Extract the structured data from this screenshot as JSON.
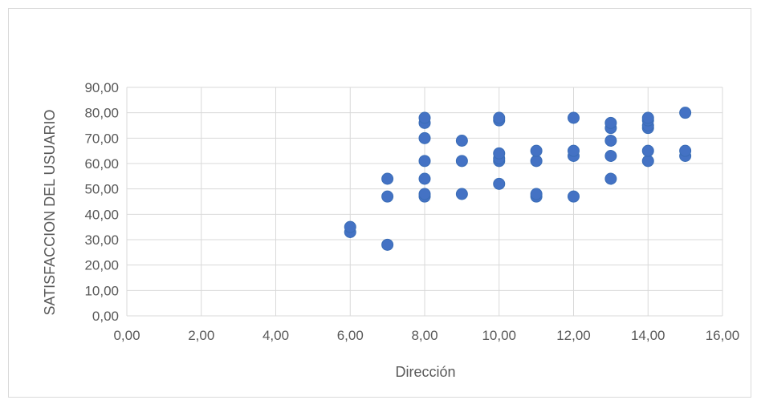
{
  "chart_data": {
    "type": "scatter",
    "title": "",
    "xlabel": "Dirección",
    "ylabel": "SATISFACCION DEL USUARIO",
    "xlim": [
      0,
      16
    ],
    "ylim": [
      0,
      90
    ],
    "x_ticks": [
      "0,00",
      "2,00",
      "4,00",
      "6,00",
      "8,00",
      "10,00",
      "12,00",
      "14,00",
      "16,00"
    ],
    "y_ticks": [
      "0,00",
      "10,00",
      "20,00",
      "30,00",
      "40,00",
      "50,00",
      "60,00",
      "70,00",
      "80,00",
      "90,00"
    ],
    "grid": true,
    "legend": "none",
    "marker_color": "#4472c4",
    "series": [
      {
        "points": [
          [
            6,
            33
          ],
          [
            6,
            35
          ],
          [
            7,
            28
          ],
          [
            7,
            47
          ],
          [
            7,
            54
          ],
          [
            8,
            47
          ],
          [
            8,
            48
          ],
          [
            8,
            54
          ],
          [
            8,
            61
          ],
          [
            8,
            70
          ],
          [
            8,
            76
          ],
          [
            8,
            78
          ],
          [
            9,
            48
          ],
          [
            9,
            61
          ],
          [
            9,
            69
          ],
          [
            10,
            52
          ],
          [
            10,
            61
          ],
          [
            10,
            62
          ],
          [
            10,
            64
          ],
          [
            10,
            77
          ],
          [
            10,
            78
          ],
          [
            11,
            47
          ],
          [
            11,
            48
          ],
          [
            11,
            61
          ],
          [
            11,
            65
          ],
          [
            12,
            47
          ],
          [
            12,
            63
          ],
          [
            12,
            65
          ],
          [
            12,
            78
          ],
          [
            13,
            54
          ],
          [
            13,
            63
          ],
          [
            13,
            69
          ],
          [
            13,
            74
          ],
          [
            13,
            76
          ],
          [
            14,
            61
          ],
          [
            14,
            65
          ],
          [
            14,
            74
          ],
          [
            14,
            75
          ],
          [
            14,
            77
          ],
          [
            14,
            78
          ],
          [
            15,
            63
          ],
          [
            15,
            65
          ],
          [
            15,
            80
          ]
        ]
      }
    ]
  }
}
